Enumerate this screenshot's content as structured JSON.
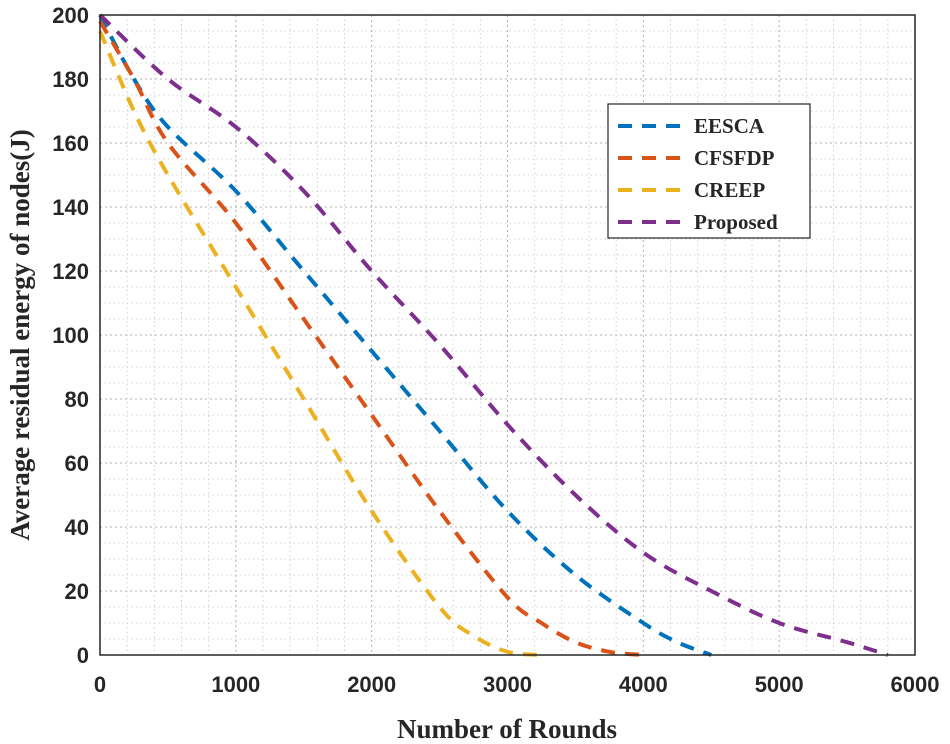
{
  "chart_data": {
    "type": "line",
    "title": "",
    "xlabel": "Number of Rounds",
    "ylabel": "Average residual energy of nodes(J)",
    "xlim": [
      0,
      6000
    ],
    "ylim": [
      0,
      200
    ],
    "xticks": [
      0,
      1000,
      2000,
      3000,
      4000,
      5000,
      6000
    ],
    "yticks": [
      0,
      20,
      40,
      60,
      80,
      100,
      120,
      140,
      160,
      180,
      200
    ],
    "grid": true,
    "minor_grid": true,
    "legend_position": "top-right",
    "series": [
      {
        "name": "EESCA",
        "color": "#0072BD",
        "x": [
          0,
          250,
          500,
          1000,
          1500,
          2000,
          2500,
          3000,
          3500,
          4000,
          4250,
          4500
        ],
        "y": [
          200,
          180,
          165,
          145,
          120,
          95,
          70,
          45,
          25,
          10,
          4,
          0
        ]
      },
      {
        "name": "CFSFDP",
        "color": "#D95319",
        "x": [
          0,
          250,
          500,
          1000,
          1500,
          2000,
          2500,
          3000,
          3250,
          3500,
          3750,
          4000
        ],
        "y": [
          198,
          180,
          160,
          135,
          105,
          75,
          45,
          18,
          10,
          4,
          1,
          0
        ]
      },
      {
        "name": "CREEP",
        "color": "#EDB120",
        "x": [
          0,
          250,
          500,
          1000,
          1500,
          2000,
          2500,
          2750,
          3000,
          3250
        ],
        "y": [
          195,
          170,
          150,
          115,
          80,
          45,
          15,
          6,
          1,
          0
        ]
      },
      {
        "name": "Proposed",
        "color": "#7E2F8E",
        "x": [
          0,
          500,
          1000,
          1500,
          2000,
          2500,
          3000,
          3500,
          4000,
          4500,
          5000,
          5500,
          5800
        ],
        "y": [
          200,
          180,
          165,
          145,
          120,
          97,
          72,
          50,
          32,
          20,
          10,
          4,
          0
        ]
      }
    ]
  }
}
